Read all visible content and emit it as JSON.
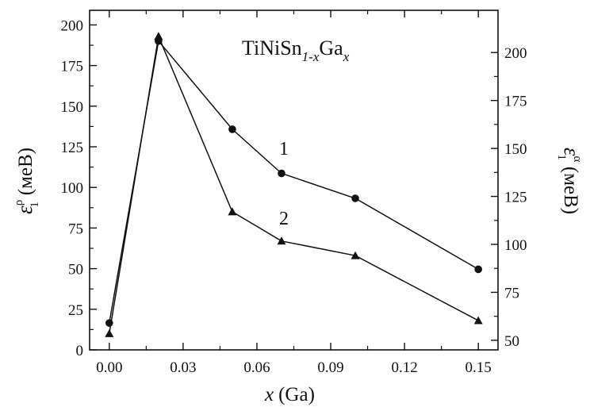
{
  "chart_data": {
    "type": "line",
    "title_parts": [
      "TiNiSn",
      "1-x",
      "Ga",
      "x"
    ],
    "xlabel_var": "x",
    "xlabel_unit": "(Ga)",
    "ylabel_left": {
      "symbol": "ε",
      "sup": "ρ",
      "sub": "1",
      "unit": "(меВ)"
    },
    "ylabel_right": {
      "symbol": "ε",
      "sup": "α",
      "sub": "1",
      "unit": "(меВ)"
    },
    "x_ticks": [
      0.0,
      0.03,
      0.06,
      0.09,
      0.12,
      0.15
    ],
    "x_tick_labels": [
      "0.00",
      "0.03",
      "0.06",
      "0.09",
      "0.12",
      "0.15"
    ],
    "xlim": [
      -0.008,
      0.158
    ],
    "y_left_ticks": [
      0,
      25,
      50,
      75,
      100,
      125,
      150,
      175,
      200
    ],
    "y_left_tick_labels": [
      "0",
      "25",
      "50",
      "75",
      "100",
      "125",
      "150",
      "175",
      "200"
    ],
    "ylim_left": [
      0,
      209
    ],
    "y_right_ticks": [
      50,
      75,
      100,
      125,
      150,
      175,
      200
    ],
    "y_right_tick_labels": [
      "50",
      "75",
      "100",
      "125",
      "150",
      "175",
      "200"
    ],
    "ylim_right": [
      45,
      222
    ],
    "grid": false,
    "series": [
      {
        "name": "1",
        "axis": "right",
        "marker": "circle",
        "x": [
          0.0,
          0.02,
          0.05,
          0.07,
          0.1,
          0.15
        ],
        "y": [
          59,
          206,
          160,
          137,
          124,
          87
        ]
      },
      {
        "name": "2",
        "axis": "left",
        "marker": "triangle",
        "x": [
          0.0,
          0.02,
          0.05,
          0.07,
          0.1,
          0.15
        ],
        "y": [
          10,
          193,
          85,
          67,
          58,
          18
        ]
      }
    ]
  }
}
